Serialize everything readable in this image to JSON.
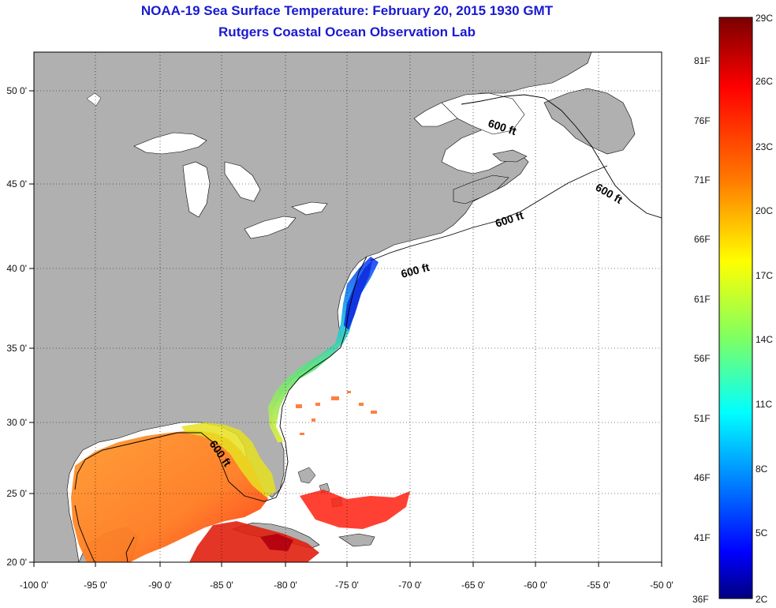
{
  "header": {
    "title": "NOAA-19 Sea Surface Temperature:  February 20, 2015 1930 GMT",
    "subtitle": "Rutgers Coastal Ocean Observation Lab"
  },
  "map": {
    "lat_ticks": [
      "50 0'",
      "45 0'",
      "40 0'",
      "35 0'",
      "30 0'",
      "25 0'",
      "20 0'"
    ],
    "lon_ticks": [
      "-100 0'",
      "-95 0'",
      "-90 0'",
      "-85 0'",
      "-80 0'",
      "-75 0'",
      "-70 0'",
      "-65 0'",
      "-60 0'",
      "-55 0'",
      "-50 0'"
    ],
    "contour_labels": [
      "600 ft",
      "600 ft",
      "600 ft",
      "600 ft",
      "600 ft"
    ],
    "land_color": "#b0b0b0",
    "water_no_data_color": "#ffffff"
  },
  "colorbar": {
    "top_celsius": "29C",
    "bottom_celsius": "2C",
    "bottom_fahrenheit": "36F",
    "fahrenheit_ticks": [
      "81F",
      "76F",
      "71F",
      "66F",
      "61F",
      "56F",
      "51F",
      "46F",
      "41F"
    ],
    "celsius_ticks": [
      "26C",
      "23C",
      "20C",
      "17C",
      "14C",
      "11C",
      "8C",
      "5C"
    ],
    "gradient_colors": [
      "#800000",
      "#ff0000",
      "#ff8000",
      "#ffff00",
      "#80ff80",
      "#00ffff",
      "#0080ff",
      "#0000ff",
      "#000080"
    ]
  }
}
